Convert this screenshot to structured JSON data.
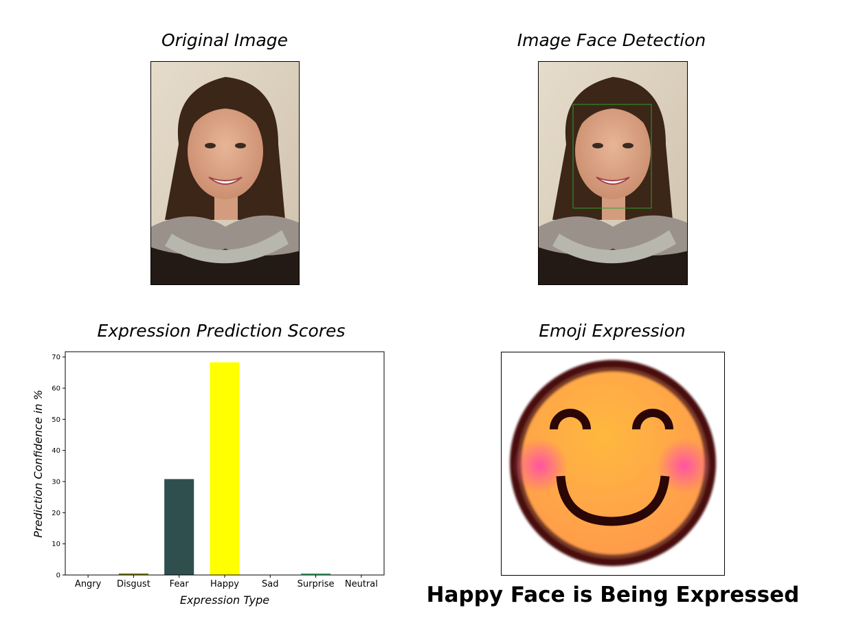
{
  "panels": {
    "original": {
      "title": "Original Image"
    },
    "detection": {
      "title": "Image Face Detection",
      "box_color": "#2ca02c"
    },
    "chart": {
      "title": "Expression Prediction Scores"
    },
    "emoji": {
      "title": "Emoji Expression",
      "face_color": "#ffa94a",
      "rim_color": "#5a1414",
      "blush_color": "#ff5aa0"
    }
  },
  "caption": "Happy Face is Being Expressed",
  "chart_data": {
    "type": "bar",
    "title": "Expression Prediction Scores",
    "xlabel": "Expression Type",
    "ylabel": "Prediction Confidence in %",
    "categories": [
      "Angry",
      "Disgust",
      "Fear",
      "Happy",
      "Sad",
      "Surprise",
      "Neutral"
    ],
    "values": [
      0.0,
      0.5,
      30.8,
      68.3,
      0.0,
      0.5,
      0.0
    ],
    "colors": [
      "#ff0000",
      "#808000",
      "#2f4f4f",
      "#ffff00",
      "#0000ff",
      "#3cb371",
      "#a9a9a9"
    ],
    "yticks": [
      0,
      10,
      20,
      30,
      40,
      50,
      60,
      70
    ],
    "ylim": [
      0,
      71.7
    ]
  }
}
